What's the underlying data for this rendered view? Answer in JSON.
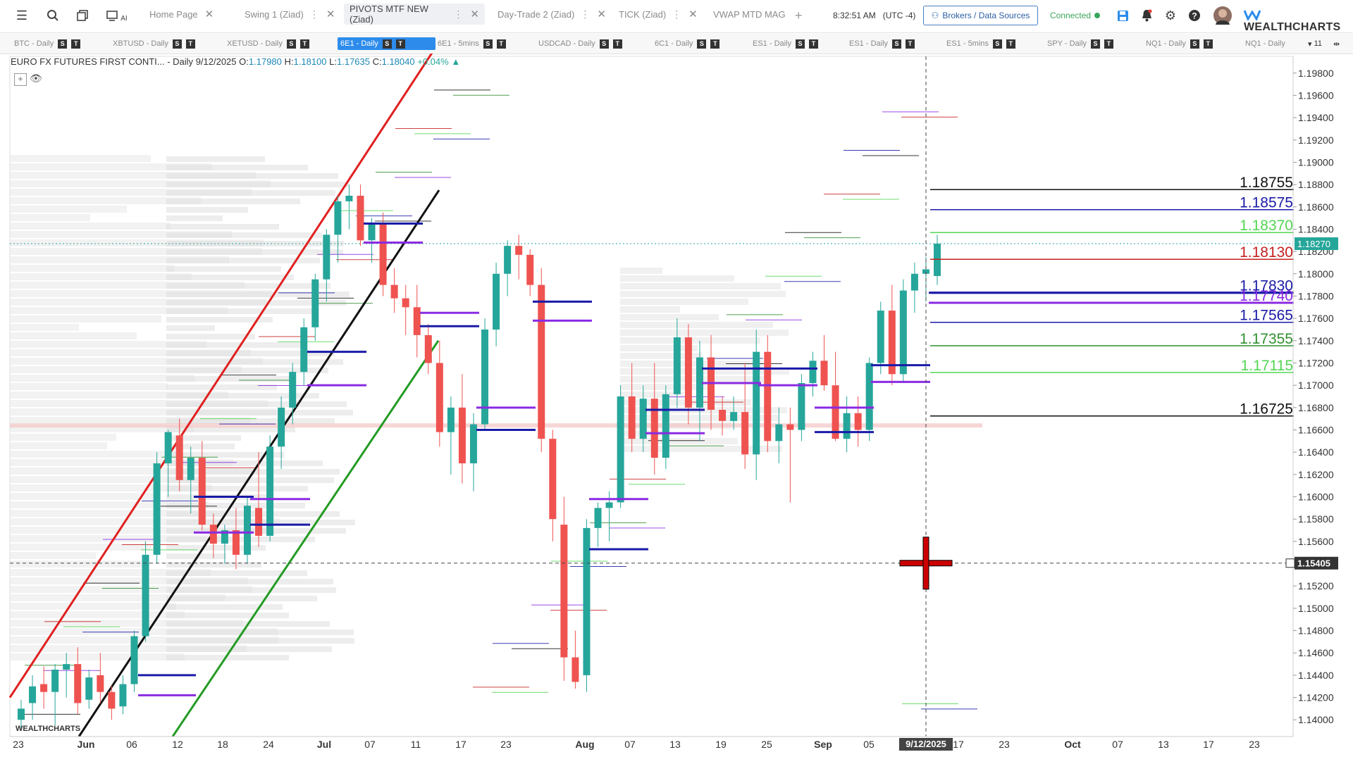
{
  "toolbar": {
    "tabs": [
      {
        "label": "Home Page",
        "active": false
      },
      {
        "label": "Swing 1 (Ziad)",
        "active": false
      },
      {
        "label": "PIVOTS MTF NEW (Ziad)",
        "active": true
      },
      {
        "label": "Day-Trade 2 (Ziad)",
        "active": false
      },
      {
        "label": "TICK (Ziad)",
        "active": false
      },
      {
        "label": "VWAP MTD MAG",
        "active": false
      }
    ],
    "time": "8:32:51 AM",
    "timezone": "(UTC -4)",
    "brokers_label": "Brokers / Data Sources",
    "status_label": "Connected",
    "logo_text": "WEALTHCHARTS",
    "ai_label": "AI"
  },
  "symbols": [
    {
      "label": "BTC - Daily",
      "active": false
    },
    {
      "label": "XBTUSD - Daily",
      "active": false
    },
    {
      "label": "XETUSD - Daily",
      "active": false
    },
    {
      "label": "6E1 - Daily",
      "active": true
    },
    {
      "label": "6E1 - 5mins",
      "active": false
    },
    {
      "label": "USDCAD - Daily",
      "active": false
    },
    {
      "label": "6C1 - Daily",
      "active": false
    },
    {
      "label": "ES1 - Daily",
      "active": false
    },
    {
      "label": "ES1 - Daily",
      "active": false
    },
    {
      "label": "ES1 - 5mins",
      "active": false
    },
    {
      "label": "SPY - Daily",
      "active": false
    },
    {
      "label": "NQ1 - Daily",
      "active": false
    },
    {
      "label": "NQ1 - Daily",
      "active": false
    }
  ],
  "symbols_more": "11",
  "header": {
    "instrument": "EURO FX FUTURES FIRST CONTI... - Daily",
    "date": "9/12/2025",
    "open_label": "O:",
    "open": "1.17980",
    "high_label": "H:",
    "high": "1.18100",
    "low_label": "L:",
    "low": "1.17635",
    "close_label": "C:",
    "close": "1.18040",
    "change": "+0.04%"
  },
  "colors": {
    "up": "#26a69a",
    "down": "#ef5350",
    "accent": "#2d8ceb",
    "channel_upper": "#e02020",
    "channel_mid": "#111111",
    "channel_lower": "#239b23",
    "pivot_navy": "#1a1aa8",
    "pivot_purple": "#8a2be2"
  },
  "chart_data": {
    "type": "candlestick",
    "ylim": [
      1.1385,
      1.1995
    ],
    "y_ticks": [
      "1.19800",
      "1.19600",
      "1.19400",
      "1.19200",
      "1.19000",
      "1.18800",
      "1.18600",
      "1.18400",
      "1.18200",
      "1.18000",
      "1.17800",
      "1.17600",
      "1.17400",
      "1.17200",
      "1.17000",
      "1.16800",
      "1.16600",
      "1.16400",
      "1.16200",
      "1.16000",
      "1.15800",
      "1.15600",
      "1.15400",
      "1.15200",
      "1.15000",
      "1.14800",
      "1.14600",
      "1.14400",
      "1.14200",
      "1.14000"
    ],
    "x_ticks": [
      "23",
      "Jun",
      "06",
      "12",
      "18",
      "24",
      "Jul",
      "07",
      "11",
      "17",
      "23",
      "Aug",
      "07",
      "13",
      "19",
      "25",
      "Sep",
      "05",
      "9/12/2025",
      "17",
      "23",
      "Oct",
      "07",
      "13",
      "17",
      "23"
    ],
    "last_price": "1.18270",
    "crosshair_price": "1.15405",
    "crosshair_date": "9/12/2025",
    "candles": [
      [
        1.14,
        1.1418,
        1.1392,
        1.141
      ],
      [
        1.1415,
        1.144,
        1.14,
        1.143
      ],
      [
        1.1432,
        1.1448,
        1.141,
        1.1425
      ],
      [
        1.1425,
        1.145,
        1.1395,
        1.1445
      ],
      [
        1.1445,
        1.146,
        1.142,
        1.145
      ],
      [
        1.145,
        1.1465,
        1.1405,
        1.1415
      ],
      [
        1.1418,
        1.1445,
        1.141,
        1.1438
      ],
      [
        1.144,
        1.146,
        1.1415,
        1.1425
      ],
      [
        1.1425,
        1.143,
        1.14,
        1.141
      ],
      [
        1.1412,
        1.144,
        1.1405,
        1.1432
      ],
      [
        1.1432,
        1.148,
        1.1425,
        1.1475
      ],
      [
        1.1475,
        1.156,
        1.147,
        1.1548
      ],
      [
        1.1548,
        1.164,
        1.154,
        1.163
      ],
      [
        1.163,
        1.166,
        1.16,
        1.1658
      ],
      [
        1.1655,
        1.167,
        1.1605,
        1.1615
      ],
      [
        1.1615,
        1.1645,
        1.1585,
        1.1635
      ],
      [
        1.1635,
        1.165,
        1.157,
        1.1575
      ],
      [
        1.1575,
        1.1585,
        1.1545,
        1.1558
      ],
      [
        1.1558,
        1.1575,
        1.154,
        1.157
      ],
      [
        1.157,
        1.159,
        1.1535,
        1.1548
      ],
      [
        1.1548,
        1.16,
        1.154,
        1.1592
      ],
      [
        1.159,
        1.164,
        1.1555,
        1.1565
      ],
      [
        1.1565,
        1.1655,
        1.156,
        1.1645
      ],
      [
        1.1645,
        1.169,
        1.1625,
        1.168
      ],
      [
        1.168,
        1.172,
        1.1665,
        1.1712
      ],
      [
        1.1712,
        1.176,
        1.17,
        1.1752
      ],
      [
        1.1752,
        1.18,
        1.174,
        1.1795
      ],
      [
        1.1795,
        1.184,
        1.1775,
        1.1835
      ],
      [
        1.1835,
        1.187,
        1.181,
        1.1865
      ],
      [
        1.1865,
        1.188,
        1.184,
        1.187
      ],
      [
        1.187,
        1.188,
        1.1825,
        1.183
      ],
      [
        1.183,
        1.185,
        1.181,
        1.1845
      ],
      [
        1.1845,
        1.1855,
        1.178,
        1.179
      ],
      [
        1.179,
        1.1805,
        1.1765,
        1.1778
      ],
      [
        1.1778,
        1.179,
        1.1745,
        1.177
      ],
      [
        1.177,
        1.179,
        1.1725,
        1.1745
      ],
      [
        1.1745,
        1.1755,
        1.171,
        1.172
      ],
      [
        1.172,
        1.174,
        1.1645,
        1.1658
      ],
      [
        1.1658,
        1.169,
        1.162,
        1.168
      ],
      [
        1.168,
        1.171,
        1.1612,
        1.163
      ],
      [
        1.163,
        1.1675,
        1.1605,
        1.1665
      ],
      [
        1.1665,
        1.176,
        1.166,
        1.175
      ],
      [
        1.175,
        1.181,
        1.1735,
        1.18
      ],
      [
        1.18,
        1.183,
        1.178,
        1.1825
      ],
      [
        1.1825,
        1.1835,
        1.1795,
        1.1817
      ],
      [
        1.1817,
        1.1822,
        1.178,
        1.179
      ],
      [
        1.179,
        1.1805,
        1.164,
        1.1652
      ],
      [
        1.1652,
        1.166,
        1.156,
        1.158
      ],
      [
        1.1575,
        1.16,
        1.1435,
        1.1456
      ],
      [
        1.1456,
        1.148,
        1.1428,
        1.1434
      ],
      [
        1.144,
        1.158,
        1.1425,
        1.1572
      ],
      [
        1.1572,
        1.1595,
        1.1555,
        1.159
      ],
      [
        1.159,
        1.1605,
        1.156,
        1.1595
      ],
      [
        1.1595,
        1.17,
        1.159,
        1.169
      ],
      [
        1.169,
        1.172,
        1.164,
        1.1652
      ],
      [
        1.1652,
        1.17,
        1.164,
        1.1688
      ],
      [
        1.1688,
        1.172,
        1.162,
        1.1635
      ],
      [
        1.1635,
        1.17,
        1.1625,
        1.1692
      ],
      [
        1.1692,
        1.176,
        1.168,
        1.1743
      ],
      [
        1.1743,
        1.1755,
        1.1665,
        1.168
      ],
      [
        1.168,
        1.174,
        1.165,
        1.1725
      ],
      [
        1.1725,
        1.1745,
        1.166,
        1.1678
      ],
      [
        1.1678,
        1.169,
        1.1655,
        1.1668
      ],
      [
        1.1668,
        1.169,
        1.166,
        1.1676
      ],
      [
        1.1676,
        1.172,
        1.1625,
        1.1638
      ],
      [
        1.1638,
        1.175,
        1.1615,
        1.173
      ],
      [
        1.173,
        1.1745,
        1.164,
        1.165
      ],
      [
        1.165,
        1.168,
        1.163,
        1.1665
      ],
      [
        1.1665,
        1.168,
        1.1595,
        1.166
      ],
      [
        1.166,
        1.171,
        1.165,
        1.1702
      ],
      [
        1.1702,
        1.173,
        1.169,
        1.1722
      ],
      [
        1.1722,
        1.1745,
        1.1695,
        1.17
      ],
      [
        1.17,
        1.173,
        1.165,
        1.1652
      ],
      [
        1.1652,
        1.169,
        1.164,
        1.1675
      ],
      [
        1.1675,
        1.169,
        1.1645,
        1.166
      ],
      [
        1.166,
        1.1725,
        1.165,
        1.172
      ],
      [
        1.172,
        1.1775,
        1.171,
        1.1767
      ],
      [
        1.1767,
        1.179,
        1.17,
        1.171
      ],
      [
        1.171,
        1.1795,
        1.1702,
        1.1785
      ],
      [
        1.1785,
        1.181,
        1.1765,
        1.18
      ],
      [
        1.18,
        1.1815,
        1.1775,
        1.1804
      ],
      [
        1.1798,
        1.1835,
        1.179,
        1.1827
      ]
    ],
    "pivot_labels": [
      {
        "value": 1.18755,
        "text": "1.18755",
        "color": "#111111"
      },
      {
        "value": 1.18575,
        "text": "1.18575",
        "color": "#1a1aa8"
      },
      {
        "value": 1.1837,
        "text": "1.18370",
        "color": "#53d653"
      },
      {
        "value": 1.1813,
        "text": "1.18130",
        "color": "#c62020"
      },
      {
        "value": 1.1783,
        "text": "1.17830",
        "color": "#1a1aa8"
      },
      {
        "value": 1.1774,
        "text": "1.17740",
        "color": "#8a2be2"
      },
      {
        "value": 1.17565,
        "text": "1.17565",
        "color": "#1a1aa8"
      },
      {
        "value": 1.17355,
        "text": "1.17355",
        "color": "#2f8f2f"
      },
      {
        "value": 1.17115,
        "text": "1.17115",
        "color": "#53d653"
      },
      {
        "value": 1.16725,
        "text": "1.16725",
        "color": "#111111"
      }
    ]
  }
}
